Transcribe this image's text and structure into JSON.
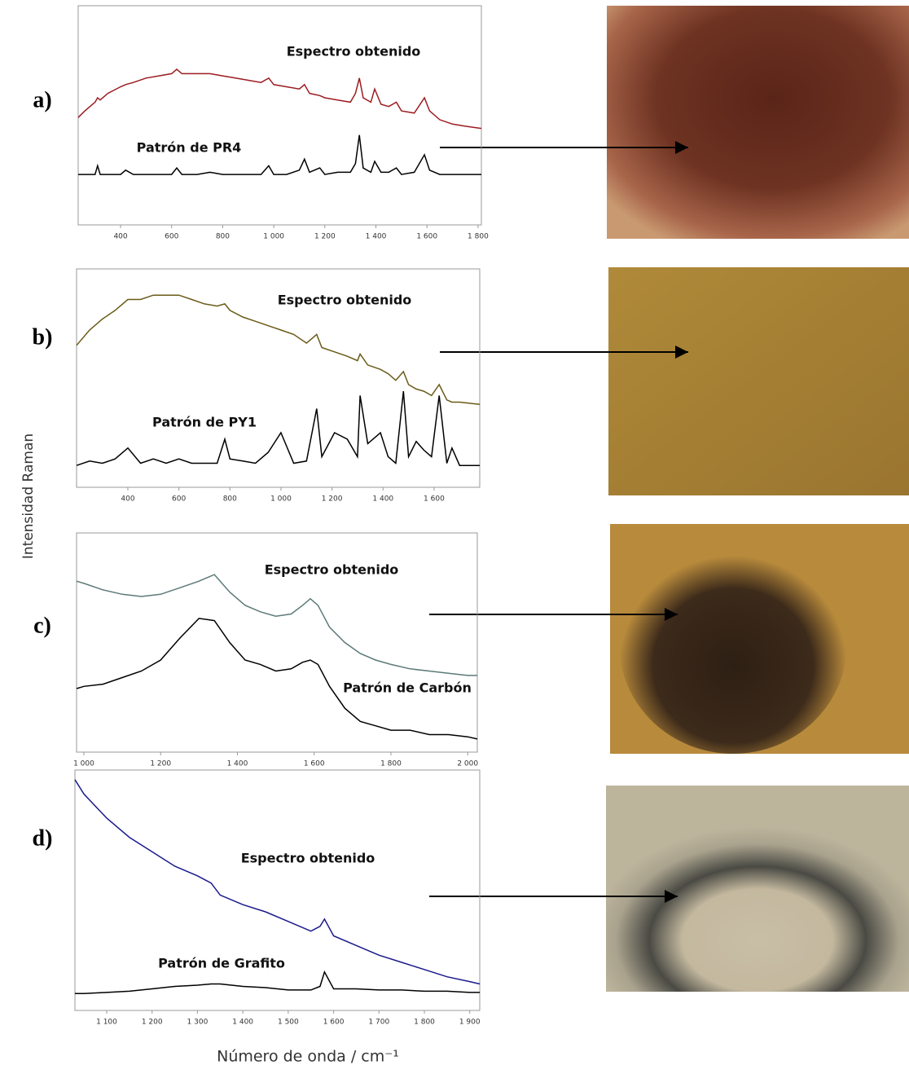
{
  "y_label": "Intensidad Raman",
  "x_label": "Número de onda / cm⁻¹",
  "chart_data": [
    {
      "type": "line",
      "panel": "a)",
      "x": [
        234,
        260,
        300,
        310,
        320,
        350,
        400,
        420,
        450,
        500,
        550,
        600,
        620,
        640,
        700,
        750,
        800,
        850,
        900,
        950,
        980,
        1000,
        1050,
        1100,
        1120,
        1140,
        1180,
        1200,
        1250,
        1300,
        1320,
        1335,
        1350,
        1380,
        1395,
        1420,
        1450,
        1480,
        1500,
        1550,
        1590,
        1610,
        1650,
        1700,
        1750,
        1813
      ],
      "xlim": [
        234,
        1813
      ],
      "ylim": [
        0,
        100
      ],
      "xticks": [
        400,
        600,
        800,
        {
          "value": 1000,
          "label": "1 000"
        },
        {
          "value": 1200,
          "label": "1 200"
        },
        {
          "value": 1400,
          "label": "1 400"
        },
        {
          "value": 1600,
          "label": "1 600"
        },
        {
          "value": 1800,
          "label": "1 800"
        }
      ],
      "series": [
        {
          "name": "Espectro obtenido",
          "color": "#9b1c22",
          "values": [
            49,
            52,
            56,
            58,
            57,
            60,
            63,
            64,
            65,
            67,
            68,
            69,
            71,
            69,
            69,
            69,
            68,
            67,
            66,
            65,
            67,
            64,
            63,
            62,
            64,
            60,
            59,
            58,
            57,
            56,
            60,
            67,
            58,
            56,
            62,
            55,
            54,
            56,
            52,
            51,
            58,
            52,
            48,
            46,
            45,
            44
          ]
        },
        {
          "name": "Patrón de PR4",
          "color": "#000000",
          "values": [
            23,
            23,
            23,
            27,
            23,
            23,
            23,
            25,
            23,
            23,
            23,
            23,
            26,
            23,
            23,
            24,
            23,
            23,
            23,
            23,
            27,
            23,
            23,
            25,
            30,
            24,
            26,
            23,
            24,
            24,
            28,
            41,
            26,
            24,
            29,
            24,
            24,
            26,
            23,
            24,
            32,
            25,
            23,
            23,
            23,
            23
          ]
        }
      ]
    },
    {
      "type": "line",
      "panel": "b)",
      "x": [
        199,
        250,
        300,
        350,
        400,
        450,
        500,
        550,
        600,
        650,
        700,
        750,
        780,
        800,
        850,
        900,
        950,
        1000,
        1050,
        1100,
        1140,
        1160,
        1210,
        1260,
        1300,
        1310,
        1340,
        1390,
        1420,
        1450,
        1480,
        1500,
        1530,
        1560,
        1590,
        1620,
        1650,
        1670,
        1700,
        1779
      ],
      "xlim": [
        199,
        1779
      ],
      "ylim": [
        0,
        100
      ],
      "xticks": [
        400,
        600,
        800,
        {
          "value": 1000,
          "label": "1 000"
        },
        {
          "value": 1200,
          "label": "1 200"
        },
        {
          "value": 1400,
          "label": "1 400"
        },
        {
          "value": 1600,
          "label": "1 600"
        }
      ],
      "series": [
        {
          "name": "Espectro obtenido",
          "color": "#6b5a17",
          "values": [
            65,
            72,
            77,
            81,
            86,
            86,
            88,
            88,
            88,
            86,
            84,
            83,
            84,
            81,
            78,
            76,
            74,
            72,
            70,
            66,
            70,
            64,
            62,
            60,
            58,
            61,
            56,
            54,
            52,
            49,
            53,
            47,
            45,
            44,
            42,
            47,
            40,
            39,
            39,
            38
          ]
        },
        {
          "name": "Patrón de PY1",
          "color": "#000000",
          "values": [
            10,
            12,
            11,
            13,
            18,
            11,
            13,
            11,
            13,
            11,
            11,
            11,
            22,
            13,
            12,
            11,
            16,
            25,
            11,
            12,
            36,
            14,
            25,
            22,
            14,
            42,
            20,
            25,
            14,
            11,
            44,
            14,
            21,
            17,
            14,
            42,
            11,
            18,
            10,
            10
          ]
        }
      ]
    },
    {
      "type": "line",
      "panel": "c)",
      "x": [
        981,
        1000,
        1050,
        1100,
        1150,
        1200,
        1250,
        1300,
        1340,
        1380,
        1420,
        1460,
        1500,
        1540,
        1570,
        1590,
        1610,
        1640,
        1680,
        1720,
        1760,
        1800,
        1850,
        1900,
        1950,
        2000,
        2025
      ],
      "xlim": [
        981,
        2025
      ],
      "ylim": [
        0,
        100
      ],
      "xticks": [
        {
          "value": 1000,
          "label": "1 000"
        },
        {
          "value": 1200,
          "label": "1 200"
        },
        {
          "value": 1400,
          "label": "1 400"
        },
        {
          "value": 1600,
          "label": "1 600"
        },
        {
          "value": 1800,
          "label": "1 800"
        },
        {
          "value": 2000,
          "label": "2 000"
        }
      ],
      "series": [
        {
          "name": "Espectro obtenido",
          "color": "#5c7a78",
          "values": [
            78,
            77,
            74,
            72,
            71,
            72,
            75,
            78,
            81,
            73,
            67,
            64,
            62,
            63,
            67,
            70,
            67,
            57,
            50,
            45,
            42,
            40,
            38,
            37,
            36,
            35,
            35
          ]
        },
        {
          "name": "Patrón de Carbón",
          "color": "#000000",
          "values": [
            29,
            30,
            31,
            34,
            37,
            42,
            52,
            61,
            60,
            50,
            42,
            40,
            37,
            38,
            41,
            42,
            40,
            30,
            20,
            14,
            12,
            10,
            10,
            8,
            8,
            7,
            6
          ]
        }
      ]
    },
    {
      "type": "line",
      "panel": "d)",
      "x": [
        1030,
        1050,
        1100,
        1150,
        1200,
        1250,
        1300,
        1330,
        1350,
        1400,
        1450,
        1500,
        1550,
        1570,
        1580,
        1600,
        1650,
        1700,
        1750,
        1800,
        1850,
        1900,
        1922
      ],
      "xlim": [
        1030,
        1922
      ],
      "ylim": [
        0,
        100
      ],
      "xticks": [
        {
          "value": 1100,
          "label": "1 100"
        },
        {
          "value": 1200,
          "label": "1 200"
        },
        {
          "value": 1300,
          "label": "1 300"
        },
        {
          "value": 1400,
          "label": "1 400"
        },
        {
          "value": 1500,
          "label": "1 500"
        },
        {
          "value": 1600,
          "label": "1 600"
        },
        {
          "value": 1700,
          "label": "1 700"
        },
        {
          "value": 1800,
          "label": "1 800"
        },
        {
          "value": 1900,
          "label": "1 900"
        }
      ],
      "series": [
        {
          "name": "Espectro obtenido",
          "color": "#1a1a8c",
          "values": [
            96,
            90,
            80,
            72,
            66,
            60,
            56,
            53,
            48,
            44,
            41,
            37,
            33,
            35,
            38,
            31,
            27,
            23,
            20,
            17,
            14,
            12,
            11
          ]
        },
        {
          "name": "Patrón de Grafito",
          "color": "#000000",
          "values": [
            7,
            7,
            7.5,
            8,
            9,
            10,
            10.5,
            11,
            11,
            10,
            9.5,
            8.5,
            8.5,
            10,
            16,
            9,
            9,
            8.5,
            8.5,
            8,
            8,
            7.5,
            7.5
          ]
        }
      ]
    }
  ]
}
